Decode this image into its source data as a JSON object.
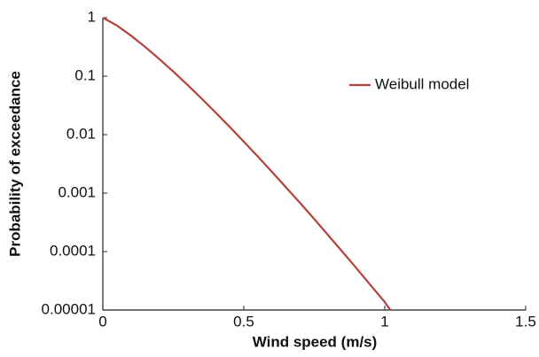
{
  "chart_data": {
    "type": "line",
    "x_label": "Wind speed (m/s)",
    "y_label": "Probability of exceedance",
    "x": [
      0,
      0.05,
      0.1,
      0.15,
      0.2,
      0.25,
      0.3,
      0.35,
      0.4,
      0.45,
      0.5,
      0.55,
      0.6,
      0.65,
      0.7,
      0.75,
      0.8,
      0.85,
      0.9,
      0.95,
      1.0,
      1.02
    ],
    "series": [
      {
        "name": "Weibull model",
        "color": "#b5413a",
        "values": [
          1,
          0.735,
          0.493,
          0.317,
          0.197,
          0.12,
          0.0712,
          0.0416,
          0.0239,
          0.0136,
          0.00761,
          0.00421,
          0.00231,
          0.00125,
          0.000675,
          0.00036,
          0.000189,
          9.91e-05,
          5.17e-05,
          2.65e-05,
          1.37e-05,
          1e-05
        ]
      }
    ],
    "xlim": [
      0,
      1.5
    ],
    "xticks": [
      0,
      0.5,
      1,
      1.5
    ],
    "ylim": [
      1e-05,
      1
    ],
    "yticks": [
      1,
      0.1,
      0.01,
      0.001,
      0.0001,
      1e-05
    ],
    "y_scale": "log",
    "grid": false,
    "legend": "upper right"
  }
}
